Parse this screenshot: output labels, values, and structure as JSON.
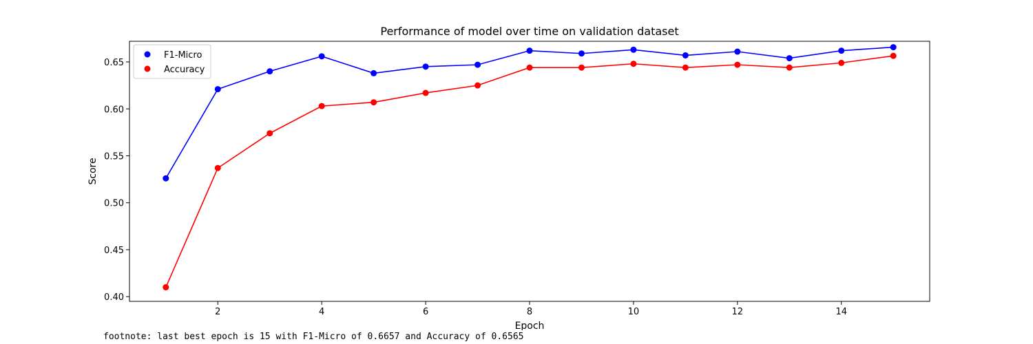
{
  "chart_data": {
    "type": "line",
    "title": "Performance of model over time on validation dataset",
    "xlabel": "Epoch",
    "ylabel": "Score",
    "xlim": [
      0.3,
      15.7
    ],
    "ylim": [
      0.395,
      0.672
    ],
    "xticks": [
      2,
      4,
      6,
      8,
      10,
      12,
      14
    ],
    "yticks": [
      0.4,
      0.45,
      0.5,
      0.55,
      0.6,
      0.65
    ],
    "ytick_format": 2,
    "grid": false,
    "legend_position": "upper-left",
    "x": [
      1,
      2,
      3,
      4,
      5,
      6,
      7,
      8,
      9,
      10,
      11,
      12,
      13,
      14,
      15
    ],
    "series": [
      {
        "name": "F1-Micro",
        "color": "#0000ff",
        "values": [
          0.526,
          0.621,
          0.64,
          0.656,
          0.638,
          0.645,
          0.647,
          0.662,
          0.659,
          0.663,
          0.657,
          0.661,
          0.654,
          0.662,
          0.6657
        ]
      },
      {
        "name": "Accuracy",
        "color": "#ff0000",
        "values": [
          0.41,
          0.537,
          0.574,
          0.603,
          0.607,
          0.617,
          0.625,
          0.644,
          0.644,
          0.648,
          0.644,
          0.647,
          0.644,
          0.649,
          0.6565
        ]
      }
    ]
  },
  "footnote": "footnote: last best epoch is 15 with F1-Micro of 0.6657 and Accuracy of 0.6565"
}
